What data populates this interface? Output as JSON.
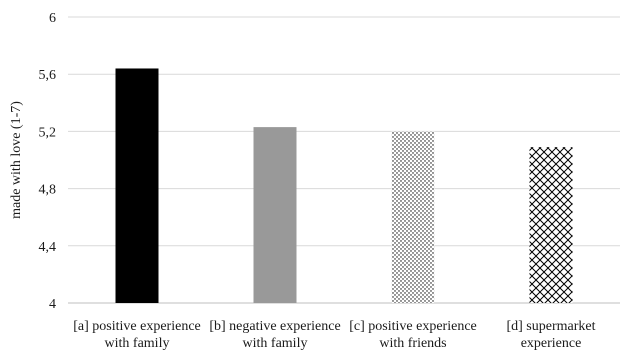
{
  "chart_data": {
    "type": "bar",
    "title": "",
    "xlabel": "",
    "ylabel": "made with love (1-7)",
    "ylim": [
      4,
      6
    ],
    "yticks": [
      {
        "value": 4,
        "label": "4"
      },
      {
        "value": 4.4,
        "label": "4,4"
      },
      {
        "value": 4.8,
        "label": "4,8"
      },
      {
        "value": 5.2,
        "label": "5,2"
      },
      {
        "value": 5.6,
        "label": "5,6"
      },
      {
        "value": 6,
        "label": "6"
      }
    ],
    "grid": true,
    "categories": [
      [
        "[a] positive experience",
        "with family"
      ],
      [
        "[b] negative experience",
        "with family"
      ],
      [
        "[c] positive experience",
        "with friends"
      ],
      [
        "[d] supermarket",
        "experience"
      ]
    ],
    "values": [
      5.64,
      5.23,
      5.2,
      5.09
    ],
    "bar_styles": [
      "solid-black",
      "solid-gray",
      "dotted",
      "crosshatch"
    ],
    "colors": {
      "black": "#000000",
      "gray": "#999999",
      "grid": "#d9d9d9",
      "axis": "#bfbfbf"
    }
  }
}
